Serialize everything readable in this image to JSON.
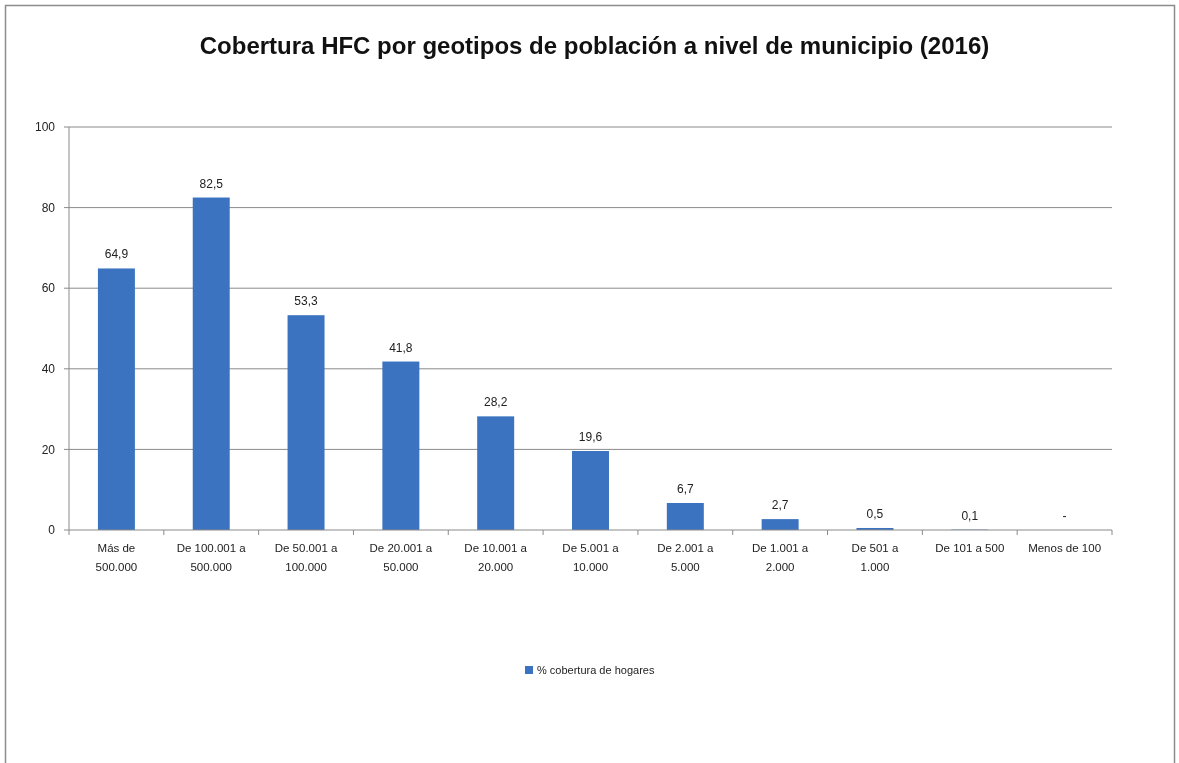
{
  "chart_data": {
    "type": "bar",
    "title": "Cobertura HFC por geotipos de población a nivel de municipio (2016)",
    "categories": [
      "Más de 500.000",
      "De 100.001 a 500.000",
      "De 50.001 a 100.000",
      "De 20.001 a 50.000",
      "De 10.001 a 20.000",
      "De 5.001 a 10.000",
      "De 2.001 a 5.000",
      "De 1.001 a 2.000",
      "De 501 a 1.000",
      "De 101 a 500",
      "Menos de 100"
    ],
    "series": [
      {
        "name": "% cobertura de hogares",
        "color": "#3b73c0",
        "values": [
          64.9,
          82.5,
          53.3,
          41.8,
          28.2,
          19.6,
          6.7,
          2.7,
          0.5,
          0.1,
          null
        ],
        "value_labels": [
          "64,9",
          "82,5",
          "53,3",
          "41,8",
          "28,2",
          "19,6",
          "6,7",
          "2,7",
          "0,5",
          "0,1",
          "-"
        ]
      }
    ],
    "ylim": [
      0,
      100
    ],
    "yticks": [
      0,
      20,
      40,
      60,
      80,
      100
    ],
    "grid": "y",
    "legend": "bottom"
  }
}
